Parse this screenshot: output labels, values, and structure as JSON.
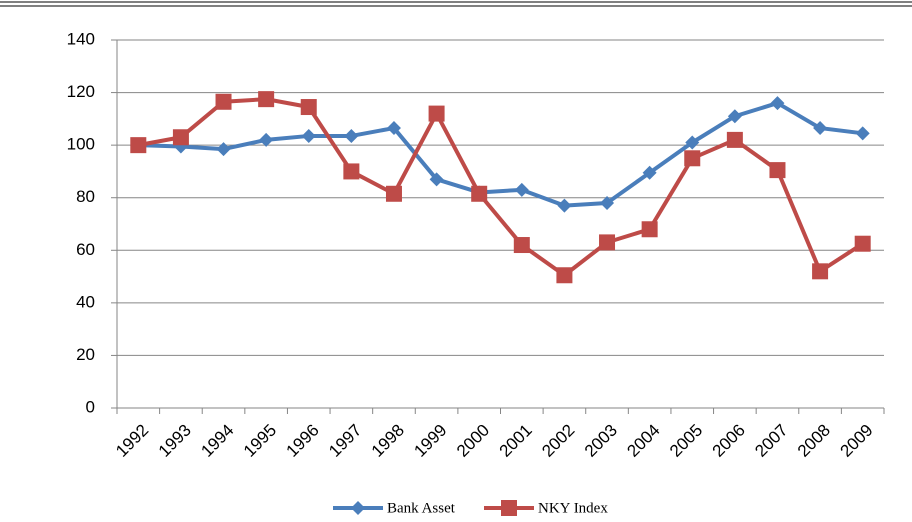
{
  "chart_data": {
    "type": "line",
    "categories": [
      "1992",
      "1993",
      "1994",
      "1995",
      "1996",
      "1997",
      "1998",
      "1999",
      "2000",
      "2001",
      "2002",
      "2003",
      "2004",
      "2005",
      "2006",
      "2007",
      "2008",
      "2009"
    ],
    "series": [
      {
        "name": "Bank Asset",
        "color": "#4a7ebb",
        "marker": "diamond",
        "values": [
          100,
          99.5,
          98.5,
          102,
          103.5,
          103.5,
          106.5,
          87,
          82,
          83,
          77,
          78,
          89.5,
          101,
          111,
          116,
          106.5,
          104.5
        ]
      },
      {
        "name": "NKY Index",
        "color": "#be4b48",
        "marker": "square",
        "values": [
          100,
          103,
          116.5,
          117.5,
          114.5,
          90,
          81.5,
          112,
          81.5,
          62,
          50.5,
          63,
          68,
          95,
          102,
          90.5,
          52,
          62.5
        ]
      }
    ],
    "ylim": [
      0,
      140
    ],
    "yticks": [
      0,
      20,
      40,
      60,
      80,
      100,
      120,
      140
    ],
    "grid": true,
    "legend": "bottom"
  }
}
